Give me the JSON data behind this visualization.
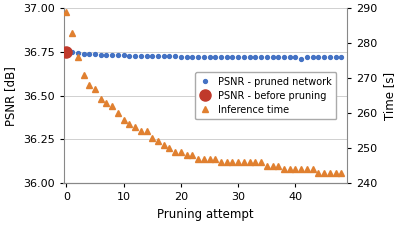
{
  "psnr_pruned_x": [
    1,
    2,
    3,
    4,
    5,
    6,
    7,
    8,
    9,
    10,
    11,
    12,
    13,
    14,
    15,
    16,
    17,
    18,
    19,
    20,
    21,
    22,
    23,
    24,
    25,
    26,
    27,
    28,
    29,
    30,
    31,
    32,
    33,
    34,
    35,
    36,
    37,
    38,
    39,
    40,
    41,
    42,
    43,
    44,
    45,
    46,
    47,
    48
  ],
  "psnr_pruned_y": [
    36.748,
    36.742,
    36.74,
    36.738,
    36.736,
    36.735,
    36.733,
    36.732,
    36.731,
    36.73,
    36.729,
    36.728,
    36.727,
    36.727,
    36.726,
    36.725,
    36.725,
    36.724,
    36.724,
    36.723,
    36.723,
    36.723,
    36.722,
    36.722,
    36.722,
    36.722,
    36.721,
    36.721,
    36.721,
    36.721,
    36.721,
    36.72,
    36.72,
    36.72,
    36.72,
    36.72,
    36.72,
    36.72,
    36.719,
    36.719,
    36.712,
    36.72,
    36.721,
    36.72,
    36.72,
    36.72,
    36.72,
    36.72
  ],
  "psnr_before_x": [
    0
  ],
  "psnr_before_y": [
    36.752
  ],
  "infer_x": [
    0,
    1,
    2,
    3,
    4,
    5,
    6,
    7,
    8,
    9,
    10,
    11,
    12,
    13,
    14,
    15,
    16,
    17,
    18,
    19,
    20,
    21,
    22,
    23,
    24,
    25,
    26,
    27,
    28,
    29,
    30,
    31,
    32,
    33,
    34,
    35,
    36,
    37,
    38,
    39,
    40,
    41,
    42,
    43,
    44,
    45,
    46,
    47,
    48
  ],
  "infer_y": [
    289,
    283,
    276,
    271,
    268,
    267,
    264,
    263,
    262,
    260,
    258,
    257,
    256,
    255,
    255,
    253,
    252,
    251,
    250,
    249,
    249,
    248,
    248,
    247,
    247,
    247,
    247,
    246,
    246,
    246,
    246,
    246,
    246,
    246,
    246,
    245,
    245,
    245,
    244,
    244,
    244,
    244,
    244,
    244,
    243,
    243,
    243,
    243,
    243
  ],
  "psnr_color": "#4472c4",
  "before_color": "#c0392b",
  "infer_color": "#e08030",
  "xlabel": "Pruning attempt",
  "ylabel_left": "PSNR [dB]",
  "ylabel_right": "Time [s]",
  "xlim": [
    -0.5,
    49
  ],
  "ylim_left": [
    36.0,
    37.0
  ],
  "ylim_right": [
    240,
    290
  ],
  "yticks_left": [
    36.0,
    36.25,
    36.5,
    36.75,
    37.0
  ],
  "yticks_right": [
    240,
    250,
    260,
    270,
    280,
    290
  ],
  "xticks": [
    0,
    10,
    20,
    30,
    40
  ],
  "legend_labels": [
    "PSNR - pruned network",
    "PSNR - before pruning",
    "Inference time"
  ],
  "bg_color": "#ffffff",
  "grid_color": "#d0d0d0"
}
